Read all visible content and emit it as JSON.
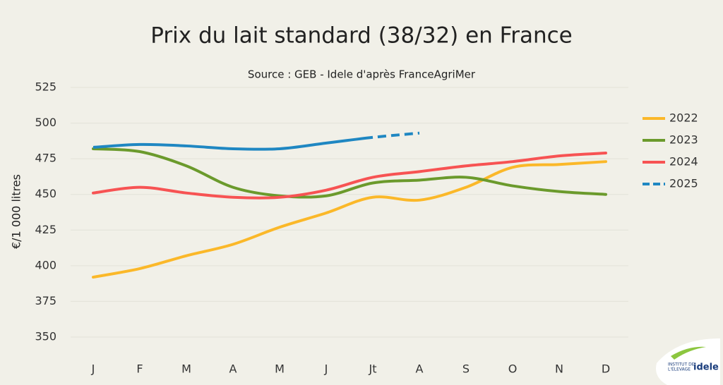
{
  "chart_data": {
    "type": "line",
    "title": "Prix du lait standard (38/32) en France",
    "subtitle": "Source : GEB - Idele d'après FranceAgriMer",
    "y_label": "€/1 000 litres",
    "categories": [
      "J",
      "F",
      "M",
      "A",
      "M",
      "J",
      "Jt",
      "A",
      "S",
      "O",
      "N",
      "D"
    ],
    "series": [
      {
        "name": "2022",
        "color": "#fbb829",
        "values": [
          392,
          398,
          407,
          415,
          427,
          437,
          448,
          446,
          455,
          469,
          471,
          473
        ]
      },
      {
        "name": "2023",
        "color": "#6b9a2c",
        "values": [
          482,
          480,
          470,
          455,
          449,
          449,
          458,
          460,
          462,
          456,
          452,
          450
        ]
      },
      {
        "name": "2024",
        "color": "#f75353",
        "values": [
          451,
          455,
          451,
          448,
          448,
          453,
          462,
          466,
          470,
          473,
          477,
          479
        ]
      },
      {
        "name": "2025",
        "color": "#1f87c2",
        "style": "dashed",
        "values": [
          483,
          485,
          484,
          482,
          482,
          486,
          490,
          493,
          null,
          null,
          null,
          null
        ]
      }
    ],
    "ylim": [
      350,
      525
    ],
    "yticks": [
      350,
      375,
      400,
      425,
      450,
      475,
      500,
      525
    ],
    "grid": true,
    "legend": "right",
    "logo": {
      "line1": "INSTITUT DE",
      "line2": "L'ÉLEVAGE",
      "brand": "idele"
    }
  }
}
